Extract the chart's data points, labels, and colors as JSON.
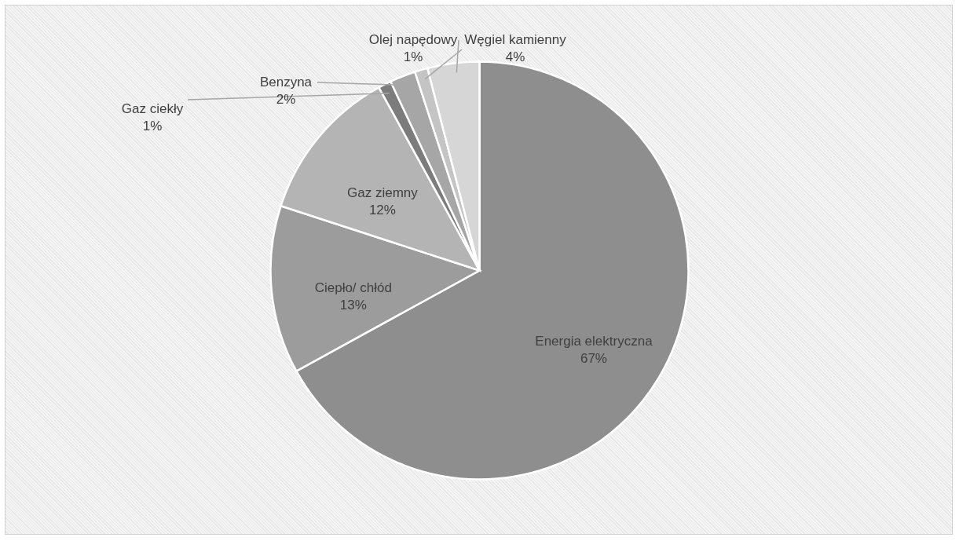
{
  "chart_data": {
    "type": "pie",
    "categories": [
      "Energia elektryczna",
      "Ciepło/ chłód",
      "Gaz ziemny",
      "Gaz ciekły",
      "Benzyna",
      "Olej napędowy",
      "Węgiel kamienny"
    ],
    "values": [
      67,
      13,
      12,
      1,
      2,
      1,
      4
    ],
    "value_labels": [
      "67%",
      "13%",
      "12%",
      "1%",
      "2%",
      "1%",
      "4%"
    ],
    "colors": [
      "#8e8e8e",
      "#9c9c9c",
      "#b4b4b4",
      "#7c7c7c",
      "#a6a6a6",
      "#c4c4c4",
      "#d6d6d6"
    ]
  }
}
